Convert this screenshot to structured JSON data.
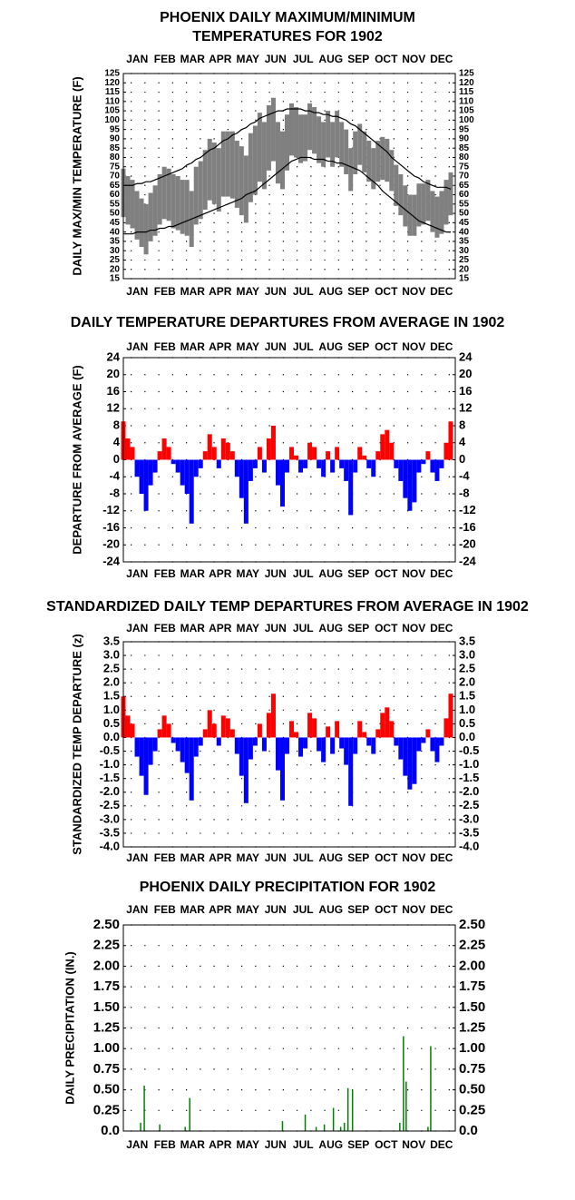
{
  "chart_data": [
    {
      "type": "range",
      "title": [
        "PHOENIX DAILY MAXIMUM/MINIMUM",
        "TEMPERATURES FOR 1902"
      ],
      "y_label": "DAILY MAX/MIN TEMPERATURE (F)",
      "categories": [
        "JAN",
        "FEB",
        "MAR",
        "APR",
        "MAY",
        "JUN",
        "JUL",
        "AUG",
        "SEP",
        "OCT",
        "NOV",
        "DEC"
      ],
      "xlim": [
        1,
        366
      ],
      "x": [
        1,
        6,
        11,
        16,
        21,
        26,
        31,
        36,
        41,
        46,
        51,
        56,
        61,
        66,
        71,
        76,
        81,
        86,
        91,
        96,
        101,
        106,
        111,
        116,
        121,
        126,
        131,
        136,
        141,
        146,
        151,
        156,
        161,
        166,
        171,
        176,
        181,
        186,
        191,
        196,
        201,
        206,
        211,
        216,
        221,
        226,
        231,
        236,
        241,
        246,
        251,
        256,
        261,
        266,
        271,
        276,
        281,
        286,
        291,
        296,
        301,
        306,
        311,
        316,
        321,
        326,
        331,
        336,
        341,
        346,
        351,
        356,
        361
      ],
      "max_values": {
        "color": "#808080",
        "values": [
          74,
          70,
          68,
          62,
          58,
          55,
          61,
          65,
          71,
          75,
          74,
          71,
          70,
          68,
          68,
          62,
          75,
          78,
          84,
          90,
          88,
          85,
          94,
          94,
          94,
          89,
          86,
          81,
          93,
          97,
          104,
          99,
          108,
          112,
          99,
          94,
          103,
          109,
          107,
          103,
          103,
          109,
          107,
          102,
          99,
          105,
          99,
          105,
          99,
          95,
          85,
          94,
          98,
          94,
          89,
          85,
          89,
          91,
          90,
          84,
          76,
          71,
          65,
          60,
          60,
          66,
          66,
          68,
          62,
          59,
          62,
          68,
          72
        ]
      },
      "min_values": {
        "color": "#808080",
        "values": [
          48,
          44,
          42,
          36,
          32,
          28,
          35,
          38,
          44,
          47,
          46,
          42,
          41,
          39,
          38,
          32,
          44,
          47,
          52,
          57,
          55,
          51,
          59,
          59,
          58,
          53,
          49,
          45,
          56,
          60,
          67,
          63,
          73,
          78,
          66,
          63,
          73,
          81,
          80,
          77,
          78,
          84,
          82,
          77,
          75,
          80,
          75,
          80,
          75,
          71,
          62,
          71,
          76,
          72,
          67,
          63,
          67,
          68,
          67,
          62,
          54,
          49,
          43,
          38,
          38,
          43,
          44,
          46,
          40,
          37,
          39,
          44,
          49
        ]
      },
      "normal_max": {
        "color": "#000000",
        "values": [
          65,
          65,
          65,
          66,
          66,
          67,
          67,
          68,
          69,
          70,
          71,
          72,
          73,
          74,
          76,
          77,
          79,
          80,
          82,
          84,
          85,
          87,
          89,
          90,
          92,
          93,
          95,
          96,
          98,
          99,
          101,
          102,
          103,
          104,
          105,
          105,
          106,
          106,
          106,
          106,
          105,
          105,
          104,
          104,
          103,
          103,
          102,
          102,
          101,
          100,
          98,
          97,
          95,
          93,
          91,
          89,
          87,
          85,
          83,
          80,
          78,
          76,
          74,
          72,
          70,
          69,
          67,
          66,
          65,
          64,
          64,
          64,
          63
        ]
      },
      "normal_min": {
        "color": "#000000",
        "values": [
          39,
          39,
          39,
          40,
          40,
          40,
          41,
          41,
          42,
          42,
          43,
          43,
          44,
          45,
          46,
          47,
          48,
          49,
          50,
          51,
          52,
          53,
          54,
          55,
          56,
          57,
          58,
          60,
          61,
          62,
          64,
          66,
          68,
          70,
          72,
          74,
          76,
          78,
          79,
          80,
          80,
          80,
          79,
          79,
          79,
          78,
          78,
          77,
          77,
          76,
          75,
          74,
          73,
          71,
          69,
          67,
          65,
          62,
          60,
          58,
          56,
          54,
          52,
          50,
          48,
          46,
          45,
          44,
          43,
          42,
          41,
          40,
          40
        ]
      },
      "ylim": [
        15,
        125
      ],
      "yticks": [
        15,
        20,
        25,
        30,
        35,
        40,
        45,
        50,
        55,
        60,
        65,
        70,
        75,
        80,
        85,
        90,
        95,
        100,
        105,
        110,
        115,
        120,
        125
      ],
      "grid": true
    },
    {
      "type": "bar",
      "title": [
        "DAILY TEMPERATURE DEPARTURES FROM AVERAGE IN 1902"
      ],
      "y_label": "DEPARTURE FROM AVERAGE (F)",
      "categories": [
        "JAN",
        "FEB",
        "MAR",
        "APR",
        "MAY",
        "JUN",
        "JUL",
        "AUG",
        "SEP",
        "OCT",
        "NOV",
        "DEC"
      ],
      "xlim": [
        1,
        366
      ],
      "x": [
        1,
        6,
        11,
        16,
        21,
        26,
        31,
        36,
        41,
        46,
        51,
        56,
        61,
        66,
        71,
        76,
        81,
        86,
        91,
        96,
        101,
        106,
        111,
        116,
        121,
        126,
        131,
        136,
        141,
        146,
        151,
        156,
        161,
        166,
        171,
        176,
        181,
        186,
        191,
        196,
        201,
        206,
        211,
        216,
        221,
        226,
        231,
        236,
        241,
        246,
        251,
        256,
        261,
        266,
        271,
        276,
        281,
        286,
        291,
        296,
        301,
        306,
        311,
        316,
        321,
        326,
        331,
        336,
        341,
        346,
        351,
        356,
        361
      ],
      "values": [
        9,
        5,
        3,
        -4,
        -8,
        -12,
        -6,
        -3,
        2,
        5,
        3,
        -1,
        -3,
        -6,
        -8,
        -15,
        -4,
        -2,
        2,
        6,
        3,
        -2,
        5,
        4,
        2,
        -4,
        -9,
        -15,
        -5,
        -2,
        3,
        -3,
        5,
        8,
        -6,
        -11,
        -3,
        3,
        1,
        -3,
        -2,
        4,
        3,
        -2,
        -4,
        2,
        -3,
        3,
        -2,
        -5,
        -13,
        -3,
        3,
        1,
        -2,
        -4,
        2,
        6,
        7,
        4,
        -2,
        -5,
        -9,
        -12,
        -10,
        -3,
        -1,
        2,
        -3,
        -5,
        -2,
        4,
        9
      ],
      "positive_color": "#ff0000",
      "negative_color": "#0000ff",
      "ylim": [
        -24,
        24
      ],
      "yticks": [
        -24,
        -20,
        -16,
        -12,
        -8,
        -4,
        0,
        4,
        8,
        12,
        16,
        20,
        24
      ],
      "grid": true
    },
    {
      "type": "bar",
      "title": [
        "STANDARDIZED DAILY TEMP DEPARTURES FROM AVERAGE IN 1902"
      ],
      "y_label": "STANDARDIZED TEMP DEPARTURE (z)",
      "categories": [
        "JAN",
        "FEB",
        "MAR",
        "APR",
        "MAY",
        "JUN",
        "JUL",
        "AUG",
        "SEP",
        "OCT",
        "NOV",
        "DEC"
      ],
      "xlim": [
        1,
        366
      ],
      "x": [
        1,
        6,
        11,
        16,
        21,
        26,
        31,
        36,
        41,
        46,
        51,
        56,
        61,
        66,
        71,
        76,
        81,
        86,
        91,
        96,
        101,
        106,
        111,
        116,
        121,
        126,
        131,
        136,
        141,
        146,
        151,
        156,
        161,
        166,
        171,
        176,
        181,
        186,
        191,
        196,
        201,
        206,
        211,
        216,
        221,
        226,
        231,
        236,
        241,
        246,
        251,
        256,
        261,
        266,
        271,
        276,
        281,
        286,
        291,
        296,
        301,
        306,
        311,
        316,
        321,
        326,
        331,
        336,
        341,
        346,
        351,
        356,
        361
      ],
      "values": [
        1.5,
        0.8,
        0.5,
        -0.7,
        -1.4,
        -2.1,
        -1.0,
        -0.5,
        0.3,
        0.8,
        0.5,
        -0.2,
        -0.5,
        -0.9,
        -1.3,
        -2.3,
        -0.7,
        -0.3,
        0.3,
        1.0,
        0.5,
        -0.3,
        0.8,
        0.7,
        0.3,
        -0.6,
        -1.4,
        -2.4,
        -0.8,
        -0.3,
        0.5,
        -0.5,
        0.9,
        1.6,
        -1.2,
        -2.3,
        -0.6,
        0.6,
        0.2,
        -0.7,
        -0.4,
        0.9,
        0.7,
        -0.5,
        -0.9,
        0.4,
        -0.6,
        0.6,
        -0.4,
        -1.0,
        -2.5,
        -0.6,
        0.6,
        0.2,
        -0.3,
        -0.6,
        0.3,
        0.9,
        1.1,
        0.6,
        -0.3,
        -0.8,
        -1.4,
        -1.9,
        -1.7,
        -0.5,
        -0.2,
        0.3,
        -0.5,
        -0.9,
        -0.3,
        0.7,
        1.6
      ],
      "positive_color": "#ff0000",
      "negative_color": "#0000ff",
      "ylim": [
        -4,
        3.5
      ],
      "yticks": [
        {
          "value": -4,
          "label": "-4.0"
        },
        -3.5,
        {
          "value": -3,
          "label": "-3.0"
        },
        -2.5,
        {
          "value": -2,
          "label": "-2.0"
        },
        -1.5,
        {
          "value": -1,
          "label": "-1.0"
        },
        -0.5,
        {
          "value": 0,
          "label": "0.0"
        },
        0.5,
        {
          "value": 1,
          "label": "1.0"
        },
        1.5,
        {
          "value": 2,
          "label": "2.0"
        },
        2.5,
        {
          "value": 3,
          "label": "3.0"
        },
        3.5
      ],
      "grid": true
    },
    {
      "type": "bar",
      "title": [
        "PHOENIX DAILY PRECIPITATION FOR 1902"
      ],
      "y_label": "DAILY PRECIPITATION (IN.)",
      "categories": [
        "JAN",
        "FEB",
        "MAR",
        "APR",
        "MAY",
        "JUN",
        "JUL",
        "AUG",
        "SEP",
        "OCT",
        "NOV",
        "DEC"
      ],
      "xlim": [
        1,
        366
      ],
      "x": [
        20,
        24,
        41,
        69,
        74,
        176,
        201,
        213,
        222,
        232,
        240,
        244,
        248,
        253,
        305,
        309,
        312,
        336,
        339
      ],
      "values": [
        0.1,
        0.55,
        0.08,
        0.05,
        0.4,
        0.12,
        0.2,
        0.05,
        0.08,
        0.28,
        0.05,
        0.1,
        0.52,
        0.5,
        0.1,
        1.15,
        0.6,
        0.05,
        1.03
      ],
      "positive_color": "#008000",
      "negative_color": "#008000",
      "ylim": [
        0,
        2.5
      ],
      "yticks": [
        {
          "value": 0,
          "label": "0.0"
        },
        0.25,
        {
          "value": 0.5,
          "label": "0.50"
        },
        0.75,
        {
          "value": 1,
          "label": "1.00"
        },
        1.25,
        {
          "value": 1.5,
          "label": "1.50"
        },
        1.75,
        {
          "value": 2,
          "label": "2.00"
        },
        2.25,
        {
          "value": 2.5,
          "label": "2.50"
        }
      ],
      "grid": true
    }
  ]
}
